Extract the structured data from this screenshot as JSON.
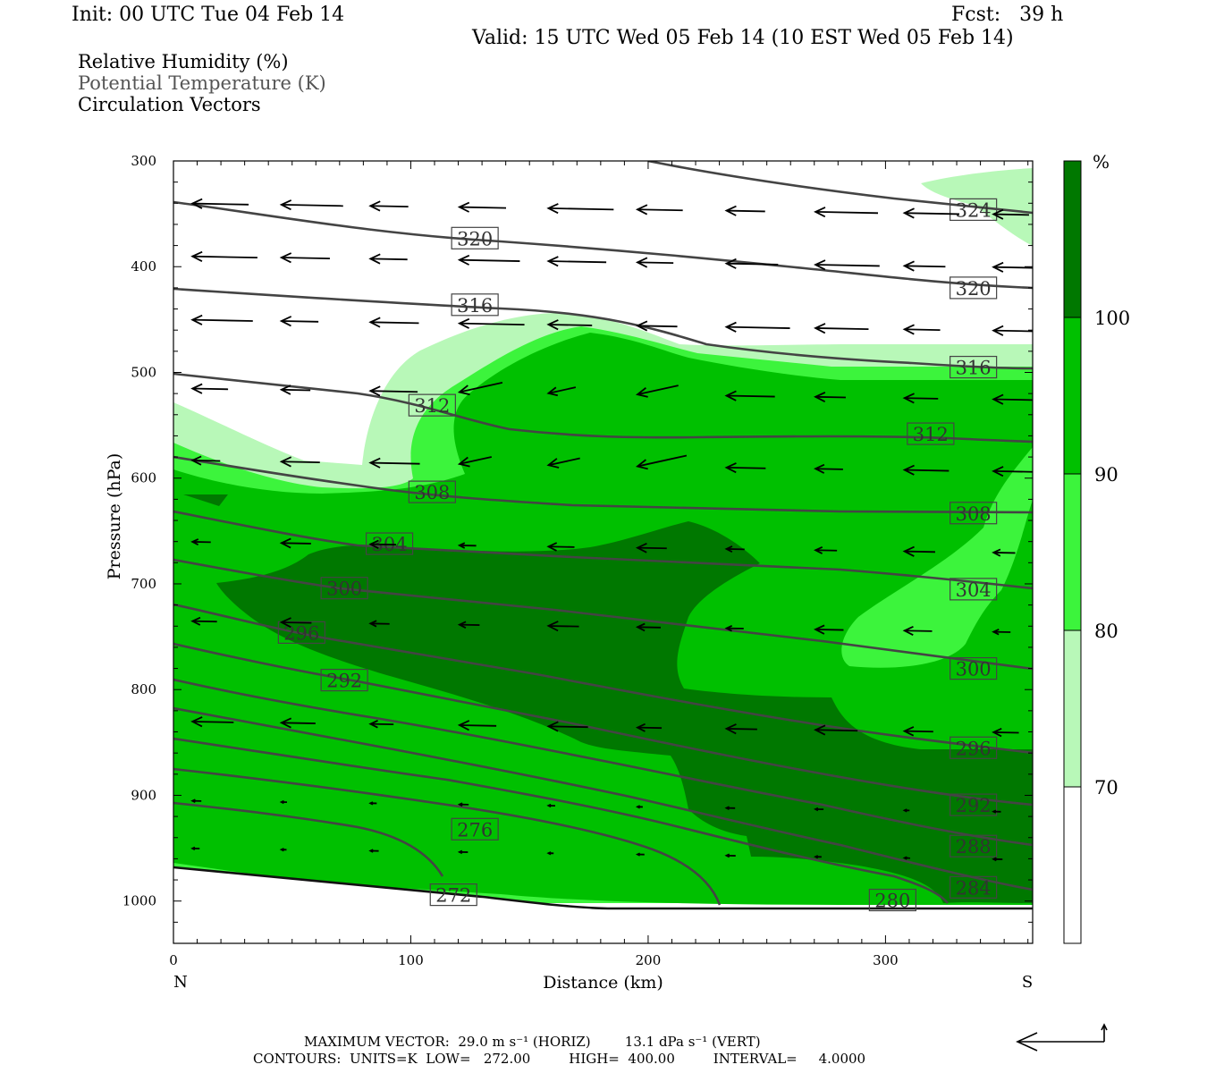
{
  "header": {
    "init": "Init: 00 UTC Tue 04 Feb 14",
    "fcst": "Fcst:   39 h",
    "valid": "Valid: 15 UTC Wed 05 Feb 14 (10 EST Wed 05 Feb 14)"
  },
  "legend": {
    "rh": "Relative Humidity (%)",
    "theta": "Potential Temperature (K)",
    "vectors": "Circulation Vectors"
  },
  "footer": {
    "max_vector": "MAXIMUM VECTOR:  29.0 m s⁻¹ (HORIZ)        13.1 dPa s⁻¹ (VERT)",
    "contours": "CONTOURS:  UNITS=K  LOW=   272.00         HIGH=  400.00         INTERVAL=     4.0000"
  },
  "chart_data": {
    "type": "cross-section",
    "xlabel": "Distance (km)",
    "ylabel": "Pressure (hPa)",
    "xlim": [
      0,
      362
    ],
    "ylim": [
      1040,
      300
    ],
    "x_ticks": [
      "0",
      "100",
      "200",
      "300"
    ],
    "y_ticks": [
      "300",
      "400",
      "500",
      "600",
      "700",
      "800",
      "900",
      "1000"
    ],
    "x_end_labels": {
      "left": "N",
      "right": "S"
    },
    "colorbar": {
      "unit": "%",
      "levels": [
        "70",
        "80",
        "90",
        "100"
      ],
      "colors": [
        "#ffffff",
        "#b8f8b8",
        "#3cf43c",
        "#00c000",
        "#007800"
      ]
    },
    "rh_fill_colors": {
      "70-80": "#b8f8b8",
      "80-90": "#3cf43c",
      "90-100": "#00c000",
      "100+": "#007800"
    },
    "theta_labels": [
      {
        "text": "324",
        "x": 337,
        "p": 346
      },
      {
        "text": "320",
        "x": 127,
        "p": 373
      },
      {
        "text": "320",
        "x": 337,
        "p": 420
      },
      {
        "text": "316",
        "x": 127,
        "p": 436
      },
      {
        "text": "316",
        "x": 337,
        "p": 495
      },
      {
        "text": "312",
        "x": 109,
        "p": 531
      },
      {
        "text": "312",
        "x": 319,
        "p": 558
      },
      {
        "text": "308",
        "x": 109,
        "p": 613
      },
      {
        "text": "308",
        "x": 337,
        "p": 633
      },
      {
        "text": "304",
        "x": 91,
        "p": 662
      },
      {
        "text": "304",
        "x": 337,
        "p": 705
      },
      {
        "text": "300",
        "x": 72,
        "p": 704
      },
      {
        "text": "300",
        "x": 337,
        "p": 780
      },
      {
        "text": "296",
        "x": 54,
        "p": 746
      },
      {
        "text": "296",
        "x": 337,
        "p": 855
      },
      {
        "text": "292",
        "x": 72,
        "p": 791
      },
      {
        "text": "292",
        "x": 337,
        "p": 909
      },
      {
        "text": "288",
        "x": 337,
        "p": 948
      },
      {
        "text": "284",
        "x": 337,
        "p": 987
      },
      {
        "text": "280",
        "x": 303,
        "p": 999
      },
      {
        "text": "276",
        "x": 127,
        "p": 932
      },
      {
        "text": "272",
        "x": 118,
        "p": 994
      }
    ],
    "vector_rows_hpa": [
      340,
      390,
      450,
      515,
      583,
      660,
      735,
      830,
      905,
      950
    ]
  }
}
